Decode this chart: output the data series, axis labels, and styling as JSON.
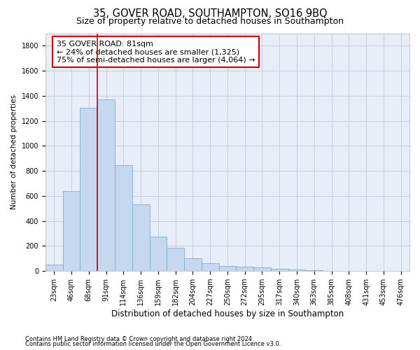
{
  "title1": "35, GOVER ROAD, SOUTHAMPTON, SO16 9BQ",
  "title2": "Size of property relative to detached houses in Southampton",
  "xlabel": "Distribution of detached houses by size in Southampton",
  "ylabel": "Number of detached properties",
  "annotation_title": "35 GOVER ROAD: 81sqm",
  "annotation_line1": "← 24% of detached houses are smaller (1,325)",
  "annotation_line2": "75% of semi-detached houses are larger (4,064) →",
  "footnote1": "Contains HM Land Registry data © Crown copyright and database right 2024.",
  "footnote2": "Contains public sector information licensed under the Open Government Licence v3.0.",
  "bar_color": "#c5d8f0",
  "bar_edge_color": "#7aadd4",
  "line_color": "#cc0000",
  "annotation_box_color": "#cc0000",
  "background_color": "#ffffff",
  "grid_color": "#c8cce0",
  "ax_bg_color": "#e8eef8",
  "categories": [
    "23sqm",
    "46sqm",
    "68sqm",
    "91sqm",
    "114sqm",
    "136sqm",
    "159sqm",
    "182sqm",
    "204sqm",
    "227sqm",
    "250sqm",
    "272sqm",
    "295sqm",
    "317sqm",
    "340sqm",
    "363sqm",
    "385sqm",
    "408sqm",
    "431sqm",
    "453sqm",
    "476sqm"
  ],
  "values": [
    50,
    638,
    1305,
    1370,
    848,
    530,
    273,
    185,
    103,
    65,
    38,
    35,
    28,
    20,
    12,
    5,
    2,
    1,
    0,
    0,
    0
  ],
  "ylim": [
    0,
    1900
  ],
  "yticks": [
    0,
    200,
    400,
    600,
    800,
    1000,
    1200,
    1400,
    1600,
    1800
  ],
  "vline_pos": 3.0,
  "title1_fontsize": 10.5,
  "title2_fontsize": 9,
  "xlabel_fontsize": 8.5,
  "ylabel_fontsize": 7.5,
  "tick_fontsize": 7,
  "annotation_fontsize": 8,
  "footnote_fontsize": 6
}
